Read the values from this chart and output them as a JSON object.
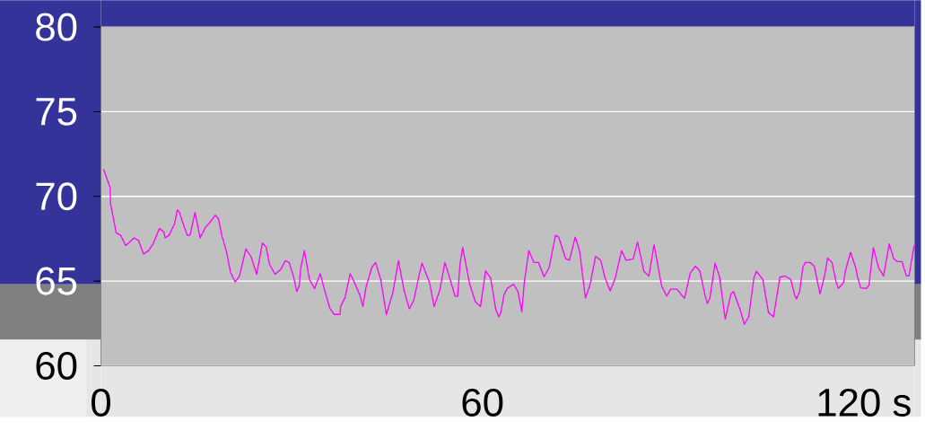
{
  "chart_data": {
    "type": "line",
    "color": "#ff00ff",
    "grid": "y",
    "xlim": [
      0,
      128
    ],
    "ylim": [
      60,
      80
    ],
    "xticks": [
      0,
      60,
      {
        "value": 120,
        "label": "120 s"
      }
    ],
    "yticks": [
      60,
      65,
      70,
      75,
      80
    ],
    "x": [
      0.4,
      0.7,
      1.45,
      1.5,
      2.4,
      3.1,
      3.9,
      4.5,
      5.2,
      5.9,
      6.7,
      7.5,
      8.2,
      8.8,
      9.2,
      9.9,
      10.1,
      10.7,
      11.6,
      12.0,
      12.3,
      13.1,
      13.6,
      14.0,
      14.8,
      15.6,
      16.4,
      17.1,
      18.0,
      18.5,
      19.0,
      19.7,
      20.4,
      21.1,
      21.8,
      22.8,
      23.6,
      24.5,
      25.4,
      26.0,
      26.5,
      27.4,
      28.3,
      29.0,
      29.6,
      30.3,
      30.8,
      31.2,
      31.4,
      32.0,
      32.8,
      33.6,
      34.5,
      35.3,
      36.0,
      36.7,
      37.6,
      37.7,
      38.4,
      39.2,
      40.0,
      40.7,
      41.2,
      41.7,
      42.6,
      43.2,
      44.0,
      44.9,
      45.9,
      46.8,
      47.7,
      48.5,
      49.2,
      50.1,
      50.5,
      51.7,
      52.4,
      53.3,
      54.1,
      55.0,
      55.7,
      56.1,
      56.5,
      56.9,
      58.0,
      58.9,
      59.7,
      60.5,
      61.3,
      62.1,
      62.6,
      62.9,
      63.4,
      63.9,
      64.9,
      65.6,
      66.2,
      66.6,
      67.3,
      68.1,
      68.8,
      69.7,
      70.5,
      71.5,
      72.0,
      73.1,
      73.7,
      74.6,
      75.3,
      76.2,
      76.9,
      77.8,
      78.6,
      79.3,
      80.1,
      80.9,
      81.9,
      82.6,
      83.7,
      84.4,
      85.4,
      86.2,
      87.0,
      88.2,
      89.0,
      89.6,
      90.6,
      91.2,
      91.8,
      92.7,
      93.5,
      94.2,
      95.1,
      95.4,
      95.8,
      96.6,
      97.3,
      98.2,
      99.1,
      99.5,
      100.6,
      101.2,
      101.9,
      102.7,
      103.1,
      104.1,
      105.0,
      105.8,
      106.8,
      107.6,
      108.5,
      109.1,
      109.4,
      109.9,
      110.4,
      110.8,
      111.5,
      112.2,
      113.1,
      113.9,
      114.3,
      115.0,
      115.6,
      116.0,
      116.8,
      117.1,
      117.9,
      118.7,
      119.0,
      119.5,
      120.4,
      120.8,
      121.5,
      122.3,
      123.1,
      124.0,
      124.7,
      125.3,
      126.0,
      126.7,
      127.1,
      127.9
    ],
    "values": [
      71.6,
      71.3,
      70.5,
      69.6,
      67.85,
      67.7,
      67.1,
      67.3,
      67.55,
      67.4,
      66.6,
      66.8,
      67.2,
      67.75,
      68.1,
      67.9,
      67.55,
      67.7,
      68.4,
      69.2,
      69.1,
      68.2,
      67.7,
      67.7,
      69.05,
      67.55,
      68.15,
      68.45,
      68.9,
      68.65,
      67.7,
      66.8,
      65.5,
      64.95,
      65.3,
      66.9,
      66.45,
      65.4,
      67.25,
      67.0,
      66.0,
      65.4,
      65.7,
      66.2,
      66.1,
      65.26,
      64.38,
      64.74,
      65.7,
      66.8,
      65.1,
      64.56,
      65.44,
      64.3,
      63.4,
      63.03,
      63.03,
      63.5,
      64.03,
      65.44,
      64.8,
      64.2,
      63.5,
      64.65,
      65.8,
      66.1,
      65.1,
      63.03,
      64.3,
      66.2,
      64.4,
      63.36,
      63.86,
      65.44,
      66.06,
      64.9,
      63.5,
      64.47,
      66.1,
      65.0,
      64.1,
      64.1,
      66.06,
      66.99,
      64.82,
      63.77,
      63.5,
      65.6,
      65.18,
      63.33,
      62.89,
      63.15,
      64.2,
      64.56,
      64.82,
      64.38,
      63.2,
      64.95,
      66.8,
      66.1,
      66.1,
      65.26,
      65.8,
      67.7,
      67.6,
      66.32,
      66.23,
      67.6,
      66.76,
      64.0,
      64.74,
      66.46,
      66.23,
      65.18,
      64.42,
      65.18,
      66.8,
      66.23,
      66.3,
      67.3,
      65.58,
      65.3,
      67.15,
      64.7,
      64.12,
      64.52,
      64.52,
      64.24,
      63.98,
      65.48,
      65.88,
      65.6,
      64.03,
      63.68,
      64.03,
      66.06,
      65.26,
      62.76,
      64.24,
      64.38,
      63.24,
      62.45,
      62.89,
      65.18,
      65.58,
      65.1,
      63.15,
      62.89,
      65.23,
      65.3,
      65.1,
      64.2,
      63.94,
      64.38,
      65.8,
      66.1,
      66.1,
      65.88,
      64.24,
      65.44,
      66.36,
      66.1,
      65.0,
      64.56,
      64.9,
      65.6,
      66.7,
      65.83,
      65.26,
      64.6,
      64.56,
      64.74,
      66.97,
      65.8,
      65.3,
      67.2,
      66.32,
      66.15,
      66.15,
      65.3,
      65.3,
      67.1
    ]
  }
}
